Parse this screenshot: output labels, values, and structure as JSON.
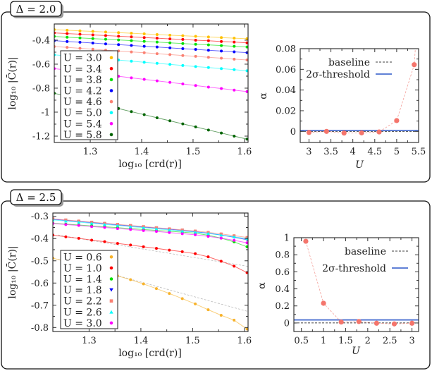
{
  "panels": [
    {
      "tab_label": "Δ = 2.0"
    },
    {
      "tab_label": "Δ = 2.5"
    }
  ],
  "chart_data": [
    {
      "type": "line",
      "panel": "Δ = 2.0",
      "xlabel": "log₁₀ [crd(r)]",
      "ylabel": "log₁₀ |C̄(r)|",
      "xlim": [
        1.23,
        1.607
      ],
      "ylim": [
        -1.253,
        -0.265
      ],
      "xticks": [
        1.3,
        1.4,
        1.5,
        1.6
      ],
      "xtick_labels": [
        "1.3",
        "1.4",
        "1.5",
        "1.6"
      ],
      "yticks": [
        -0.4,
        -0.6,
        -0.8,
        -1.0,
        -1.2
      ],
      "ytick_labels": [
        "-0.4",
        "-0.6",
        "-0.8",
        "-1",
        "-1.2"
      ],
      "legend": "bottom-left",
      "grid": false,
      "x": [
        1.23,
        1.255,
        1.28,
        1.305,
        1.33,
        1.355,
        1.38,
        1.405,
        1.43,
        1.455,
        1.48,
        1.505,
        1.53,
        1.555,
        1.58,
        1.605
      ],
      "series": [
        {
          "name": "U = 3.0",
          "color": "#ffc000",
          "marker": "circle",
          "values": [
            -0.312,
            -0.317,
            -0.322,
            -0.327,
            -0.332,
            -0.337,
            -0.342,
            -0.347,
            -0.353,
            -0.358,
            -0.363,
            -0.368,
            -0.373,
            -0.378,
            -0.383,
            -0.388
          ]
        },
        {
          "name": "U = 3.4",
          "color": "#ff0000",
          "marker": "circle",
          "values": [
            -0.339,
            -0.345,
            -0.35,
            -0.356,
            -0.361,
            -0.367,
            -0.372,
            -0.378,
            -0.383,
            -0.389,
            -0.394,
            -0.4,
            -0.405,
            -0.411,
            -0.416,
            -0.422
          ]
        },
        {
          "name": "U = 3.8",
          "color": "#00e000",
          "marker": "circle",
          "values": [
            -0.369,
            -0.375,
            -0.381,
            -0.387,
            -0.392,
            -0.398,
            -0.404,
            -0.41,
            -0.416,
            -0.422,
            -0.428,
            -0.434,
            -0.439,
            -0.445,
            -0.451,
            -0.457
          ]
        },
        {
          "name": "U = 4.2",
          "color": "#0000ff",
          "marker": "circle",
          "values": [
            -0.404,
            -0.411,
            -0.417,
            -0.424,
            -0.431,
            -0.437,
            -0.444,
            -0.451,
            -0.457,
            -0.464,
            -0.471,
            -0.477,
            -0.484,
            -0.491,
            -0.497,
            -0.504
          ]
        },
        {
          "name": "U = 4.6",
          "color": "#fa8072",
          "marker": "circle",
          "values": [
            -0.453,
            -0.46,
            -0.468,
            -0.475,
            -0.483,
            -0.49,
            -0.498,
            -0.505,
            -0.513,
            -0.52,
            -0.528,
            -0.535,
            -0.543,
            -0.55,
            -0.558,
            -0.565
          ]
        },
        {
          "name": "U = 5.0",
          "color": "#00ffff",
          "marker": "circle",
          "values": [
            -0.522,
            -0.531,
            -0.54,
            -0.549,
            -0.557,
            -0.566,
            -0.575,
            -0.584,
            -0.593,
            -0.602,
            -0.611,
            -0.62,
            -0.628,
            -0.637,
            -0.646,
            -0.655
          ]
        },
        {
          "name": "U = 5.4",
          "color": "#ff00ff",
          "marker": "circle",
          "values": [
            -0.637,
            -0.65,
            -0.663,
            -0.675,
            -0.688,
            -0.701,
            -0.714,
            -0.727,
            -0.739,
            -0.752,
            -0.765,
            -0.778,
            -0.791,
            -0.803,
            -0.816,
            -0.829
          ]
        },
        {
          "name": "U = 5.8",
          "color": "#006400",
          "marker": "circle",
          "values": [
            -0.843,
            -0.868,
            -0.894,
            -0.919,
            -0.945,
            -0.97,
            -0.996,
            -1.021,
            -1.047,
            -1.072,
            -1.098,
            -1.123,
            -1.149,
            -1.174,
            -1.2,
            -1.225
          ]
        }
      ]
    },
    {
      "type": "scatter",
      "panel": "Δ = 2.0",
      "xlabel": "U",
      "ylabel": "α",
      "xlim": [
        2.8,
        5.5
      ],
      "ylim": [
        -0.0107,
        0.08
      ],
      "xticks": [
        3,
        3.5,
        4,
        4.5,
        5,
        5.5
      ],
      "xtick_labels": [
        "3",
        "3.5",
        "4",
        "4.5",
        "5",
        "5.5"
      ],
      "yticks": [
        0,
        0.02,
        0.04,
        0.06,
        0.08
      ],
      "ytick_labels": [
        "0",
        "0.02",
        "0.04",
        "0.06",
        "0.08"
      ],
      "legend": "top-right",
      "grid": false,
      "x": [
        3.0,
        3.4,
        3.8,
        4.2,
        4.6,
        5.0,
        5.4
      ],
      "values": [
        -0.001,
        0.0,
        -0.0016,
        -0.0014,
        -0.0005,
        0.0105,
        0.0645
      ],
      "point_color": "#f4756c",
      "continues_above_plot": true,
      "baseline": {
        "label": "baseline",
        "value": 0,
        "color": "#000000"
      },
      "threshold": {
        "label": "2σ-threshold",
        "value": 0.001,
        "color": "#4a6fd0"
      }
    },
    {
      "type": "line",
      "panel": "Δ = 2.5",
      "xlabel": "log₁₀ [crd(r)]",
      "ylabel": "log₁₀ |C̄(r)|",
      "xlim": [
        1.23,
        1.607
      ],
      "ylim": [
        -0.818,
        -0.285
      ],
      "xticks": [
        1.3,
        1.4,
        1.5,
        1.6
      ],
      "xtick_labels": [
        "1.3",
        "1.4",
        "1.5",
        "1.6"
      ],
      "yticks": [
        -0.3,
        -0.4,
        -0.5,
        -0.6,
        -0.7,
        -0.8
      ],
      "ytick_labels": [
        "-0.3",
        "-0.4",
        "-0.5",
        "-0.6",
        "-0.7",
        "-0.8"
      ],
      "legend": "bottom-left",
      "grid": false,
      "x": [
        1.23,
        1.255,
        1.28,
        1.305,
        1.33,
        1.355,
        1.38,
        1.405,
        1.43,
        1.455,
        1.48,
        1.505,
        1.53,
        1.555,
        1.58,
        1.605
      ],
      "series": [
        {
          "name": "U = 0.6",
          "color": "#f7b22a",
          "marker": "circle",
          "values": [
            -0.488,
            -0.503,
            -0.519,
            -0.535,
            -0.552,
            -0.568,
            -0.585,
            -0.604,
            -0.625,
            -0.647,
            -0.67,
            -0.694,
            -0.72,
            -0.745,
            -0.767,
            -0.807
          ]
        },
        {
          "name": "U = 1.0",
          "color": "#ff0000",
          "marker": "circle",
          "values": [
            -0.384,
            -0.392,
            -0.399,
            -0.407,
            -0.414,
            -0.422,
            -0.429,
            -0.437,
            -0.444,
            -0.452,
            -0.459,
            -0.468,
            -0.482,
            -0.502,
            -0.524,
            -0.553
          ]
        },
        {
          "name": "U = 1.4",
          "color": "#00e000",
          "marker": "circle",
          "values": [
            -0.331,
            -0.335,
            -0.339,
            -0.343,
            -0.347,
            -0.351,
            -0.355,
            -0.359,
            -0.363,
            -0.367,
            -0.371,
            -0.376,
            -0.385,
            -0.398,
            -0.415,
            -0.437
          ]
        },
        {
          "name": "U = 1.8",
          "color": "#0000ff",
          "marker": "triangle-down",
          "values": [
            -0.313,
            -0.318,
            -0.323,
            -0.328,
            -0.333,
            -0.338,
            -0.343,
            -0.348,
            -0.353,
            -0.358,
            -0.363,
            -0.369,
            -0.376,
            -0.384,
            -0.394,
            -0.405
          ]
        },
        {
          "name": "U = 2.2",
          "color": "#fa8072",
          "marker": "square",
          "values": [
            -0.311,
            -0.316,
            -0.321,
            -0.326,
            -0.331,
            -0.336,
            -0.341,
            -0.346,
            -0.351,
            -0.356,
            -0.361,
            -0.366,
            -0.372,
            -0.379,
            -0.387,
            -0.395
          ]
        },
        {
          "name": "U = 2.6",
          "color": "#00ffff",
          "marker": "triangle-up",
          "values": [
            -0.316,
            -0.321,
            -0.326,
            -0.331,
            -0.336,
            -0.341,
            -0.346,
            -0.351,
            -0.356,
            -0.361,
            -0.366,
            -0.371,
            -0.377,
            -0.384,
            -0.392,
            -0.4
          ]
        },
        {
          "name": "U = 3.0",
          "color": "#ff00ff",
          "marker": "circle",
          "values": [
            -0.332,
            -0.337,
            -0.341,
            -0.346,
            -0.35,
            -0.355,
            -0.359,
            -0.364,
            -0.368,
            -0.373,
            -0.378,
            -0.383,
            -0.39,
            -0.398,
            -0.408,
            -0.419
          ]
        }
      ],
      "fit_lines": [
        {
          "series": "U = 0.6",
          "x": [
            1.24,
            1.607
          ],
          "y": [
            -0.493,
            -0.728
          ]
        },
        {
          "series": "U = 1.0",
          "x": [
            1.24,
            1.607
          ],
          "y": [
            -0.384,
            -0.525
          ]
        }
      ]
    },
    {
      "type": "scatter",
      "panel": "Δ = 2.5",
      "xlabel": "U",
      "ylabel": "α",
      "xlim": [
        0.33,
        3.15
      ],
      "ylim": [
        -0.1,
        1.0
      ],
      "xticks": [
        0.5,
        1,
        1.5,
        2,
        2.5,
        3
      ],
      "xtick_labels": [
        "0.5",
        "1",
        "1.5",
        "2",
        "2.5",
        "3"
      ],
      "yticks": [
        0,
        0.2,
        0.4,
        0.6,
        0.8,
        1
      ],
      "ytick_labels": [
        "0",
        "0.2",
        "0.4",
        "0.6",
        "0.8",
        "1"
      ],
      "legend": "top-right",
      "grid": false,
      "x": [
        0.6,
        1.0,
        1.4,
        1.8,
        2.2,
        2.6,
        3.0
      ],
      "values": [
        0.958,
        0.231,
        0.011,
        0.017,
        -0.003,
        -0.011,
        -0.003
      ],
      "point_color": "#f4756c",
      "baseline": {
        "label": "baseline",
        "value": 0,
        "color": "#000000"
      },
      "threshold": {
        "label": "2σ-threshold",
        "value": 0.036,
        "color": "#4a6fd0"
      }
    }
  ]
}
